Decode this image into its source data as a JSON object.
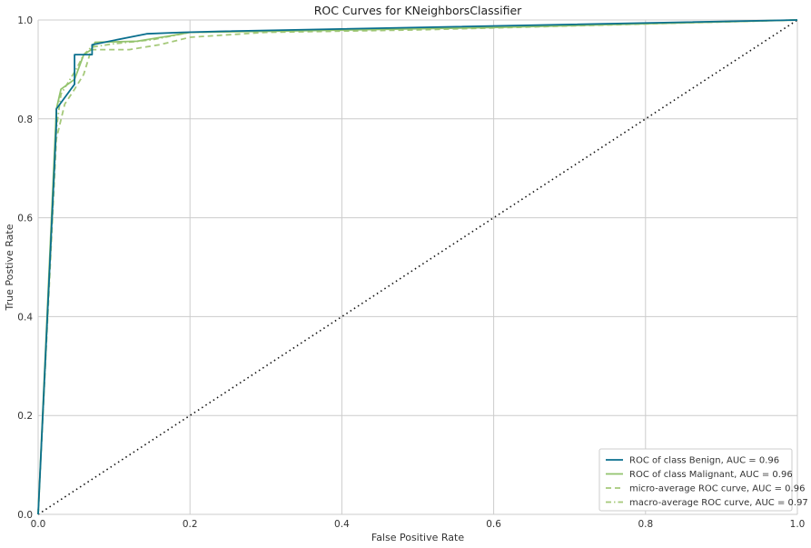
{
  "chart_data": {
    "type": "line",
    "title": "ROC Curves for KNeighborsClassifier",
    "xlabel": "False Positive Rate",
    "ylabel": "True Postive Rate",
    "xlim": [
      0,
      1
    ],
    "ylim": [
      0,
      1
    ],
    "xticks": [
      "0.0",
      "0.2",
      "0.4",
      "0.6",
      "0.8",
      "1.0"
    ],
    "yticks": [
      "0.0",
      "0.2",
      "0.4",
      "0.6",
      "0.8",
      "1.0"
    ],
    "grid": true,
    "legend_position": "bottom-right",
    "series": [
      {
        "name": "ROC of class Benign, AUC = 0.96",
        "color": "#0a6f8e",
        "dash": "solid",
        "x": [
          0,
          0.024,
          0.024,
          0.048,
          0.048,
          0.071,
          0.071,
          0.143,
          0.19,
          0.24,
          1.0
        ],
        "y": [
          0,
          0.79,
          0.82,
          0.87,
          0.93,
          0.93,
          0.95,
          0.972,
          0.975,
          0.977,
          1.0
        ]
      },
      {
        "name": "ROC of class Malignant, AUC = 0.96",
        "color": "#92c36d",
        "dash": "solid",
        "x": [
          0,
          0.024,
          0.03,
          0.048,
          0.06,
          0.07,
          0.075,
          0.13,
          0.17,
          0.2,
          0.3,
          0.6,
          1.0
        ],
        "y": [
          0,
          0.82,
          0.86,
          0.88,
          0.93,
          0.94,
          0.955,
          0.957,
          0.967,
          0.975,
          0.977,
          0.985,
          1.0
        ]
      },
      {
        "name": "micro-average ROC curve, AUC = 0.96",
        "color": "#a5c97a",
        "dash": "dashed",
        "x": [
          0,
          0.024,
          0.035,
          0.048,
          0.06,
          0.07,
          0.12,
          0.16,
          0.2,
          0.3,
          0.5,
          1.0
        ],
        "y": [
          0,
          0.76,
          0.83,
          0.86,
          0.89,
          0.94,
          0.94,
          0.95,
          0.965,
          0.975,
          0.98,
          1.0
        ]
      },
      {
        "name": "macro-average ROC curve, AUC = 0.97",
        "color": "#a5c97a",
        "dash": "dashdot",
        "x": [
          0,
          0.024,
          0.03,
          0.05,
          0.06,
          0.07,
          0.1,
          0.15,
          0.2,
          0.3,
          0.6,
          1.0
        ],
        "y": [
          0,
          0.78,
          0.85,
          0.9,
          0.93,
          0.945,
          0.952,
          0.96,
          0.975,
          0.978,
          0.986,
          1.0
        ]
      }
    ],
    "diagonal": {
      "x": [
        0,
        1
      ],
      "y": [
        0,
        1
      ],
      "color": "#111111",
      "dash": "dotted"
    }
  }
}
